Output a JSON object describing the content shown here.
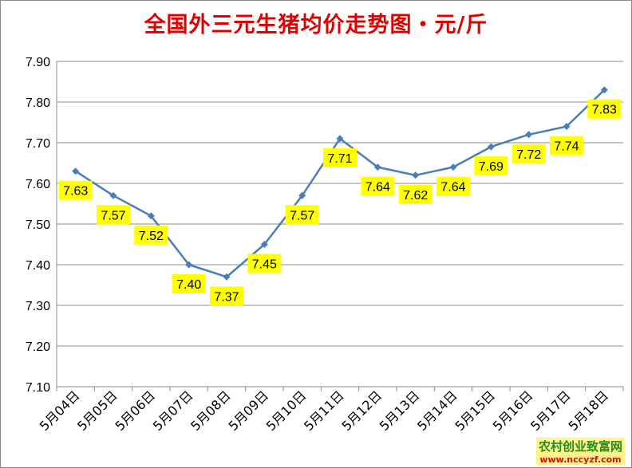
{
  "chart_data": {
    "type": "line",
    "title": "全国外三元生猪均价走势图・元/斤",
    "categories": [
      "5月04日",
      "5月05日",
      "5月06日",
      "5月07日",
      "5月08日",
      "5月09日",
      "5月10日",
      "5月11日",
      "5月12日",
      "5月13日",
      "5月14日",
      "5月15日",
      "5月16日",
      "5月17日",
      "5月18日"
    ],
    "series": [
      {
        "values": [
          7.63,
          7.57,
          7.52,
          7.4,
          7.37,
          7.45,
          7.57,
          7.71,
          7.64,
          7.62,
          7.64,
          7.69,
          7.72,
          7.74,
          7.83
        ]
      }
    ],
    "ylim": [
      7.1,
      7.9
    ],
    "yticks": [
      "7.10",
      "7.20",
      "7.30",
      "7.40",
      "7.50",
      "7.60",
      "7.70",
      "7.80",
      "7.90"
    ],
    "grid": true,
    "line_color": "#4a7ebb",
    "label_bg": "#ffff00"
  },
  "watermark": {
    "name": "农村创业致富网",
    "url": "www.nccyzf.com"
  }
}
